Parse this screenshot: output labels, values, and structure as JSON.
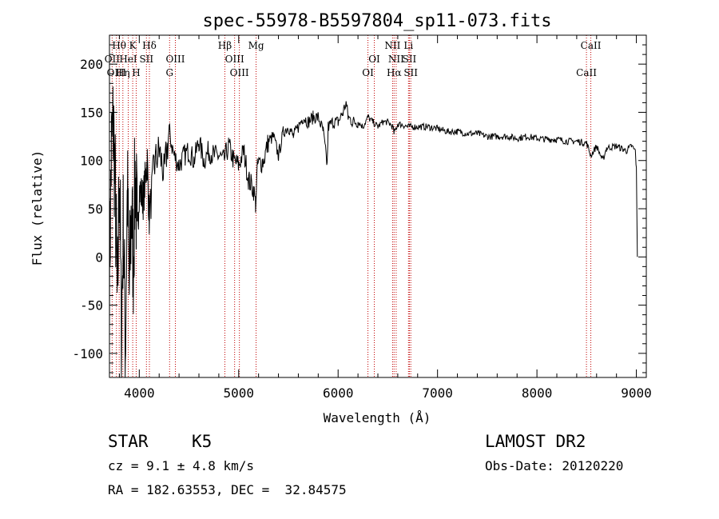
{
  "colors": {
    "foreground": "#000000",
    "background": "#ffffff",
    "line_marker": "#c00000"
  },
  "chart_data": {
    "type": "line",
    "title": "spec-55978-B5597804_sp11-073.fits",
    "xlabel": "Wavelength (Å)",
    "ylabel": "Flux (relative)",
    "xlim": [
      3700,
      9100
    ],
    "ylim": [
      -125,
      230
    ],
    "xticks": [
      4000,
      5000,
      6000,
      7000,
      8000,
      9000
    ],
    "yticks": [
      -100,
      -50,
      0,
      50,
      100,
      150,
      200
    ],
    "series": [
      {
        "name": "flux",
        "x": [
          3700,
          3720,
          3740,
          3760,
          3780,
          3800,
          3820,
          3840,
          3860,
          3880,
          3900,
          3920,
          3940,
          3960,
          3980,
          4000,
          4040,
          4080,
          4100,
          4150,
          4200,
          4250,
          4300,
          4350,
          4400,
          4450,
          4500,
          4550,
          4600,
          4650,
          4700,
          4750,
          4800,
          4850,
          4900,
          4950,
          5000,
          5050,
          5100,
          5150,
          5170,
          5190,
          5250,
          5300,
          5350,
          5400,
          5450,
          5500,
          5550,
          5600,
          5650,
          5700,
          5750,
          5800,
          5850,
          5890,
          5900,
          5950,
          6000,
          6050,
          6080,
          6100,
          6150,
          6200,
          6250,
          6300,
          6350,
          6400,
          6450,
          6500,
          6550,
          6563,
          6600,
          6650,
          6700,
          6800,
          6900,
          7000,
          7100,
          7200,
          7300,
          7400,
          7500,
          7600,
          7700,
          7800,
          7900,
          8000,
          8100,
          8200,
          8300,
          8400,
          8500,
          8542,
          8600,
          8662,
          8700,
          8800,
          8900,
          8950,
          8990,
          9000,
          9010
        ],
        "y": [
          -20,
          110,
          140,
          60,
          -60,
          100,
          -80,
          40,
          -95,
          70,
          -40,
          50,
          0,
          90,
          20,
          70,
          60,
          100,
          40,
          95,
          110,
          85,
          130,
          105,
          95,
          105,
          110,
          100,
          120,
          100,
          110,
          105,
          105,
          100,
          115,
          100,
          95,
          110,
          80,
          70,
          55,
          95,
          100,
          120,
          125,
          105,
          130,
          135,
          125,
          135,
          145,
          140,
          145,
          145,
          130,
          95,
          135,
          140,
          140,
          150,
          160,
          145,
          140,
          140,
          135,
          145,
          140,
          135,
          140,
          140,
          135,
          128,
          138,
          137,
          135,
          135,
          135,
          133,
          130,
          130,
          128,
          128,
          125,
          125,
          125,
          123,
          125,
          123,
          122,
          122,
          120,
          120,
          118,
          105,
          115,
          100,
          113,
          115,
          110,
          115,
          110,
          90,
          0
        ]
      }
    ],
    "line_markers": [
      {
        "label": "Hθ",
        "x": 3798,
        "row": 1
      },
      {
        "label": "OII",
        "x": 3727,
        "row": 2
      },
      {
        "label": "OIII",
        "x": 3770,
        "row": 3
      },
      {
        "label": "K",
        "x": 3934,
        "row": 1
      },
      {
        "label": "HeI",
        "x": 3889,
        "row": 2
      },
      {
        "label": "Hη",
        "x": 3835,
        "row": 3
      },
      {
        "label": "H",
        "x": 3969,
        "row": 3
      },
      {
        "label": "Hδ",
        "x": 4102,
        "row": 1
      },
      {
        "label": "SII",
        "x": 4072,
        "row": 2
      },
      {
        "label": "OIII",
        "x": 4363,
        "row": 2
      },
      {
        "label": "G",
        "x": 4305,
        "row": 3
      },
      {
        "label": "Hβ",
        "x": 4861,
        "row": 1
      },
      {
        "label": "OIII",
        "x": 4959,
        "row": 2
      },
      {
        "label": "OIII",
        "x": 5007,
        "row": 3
      },
      {
        "label": "Mg",
        "x": 5175,
        "row": 1
      },
      {
        "label": "OI",
        "x": 6364,
        "row": 2
      },
      {
        "label": "OI",
        "x": 6300,
        "row": 3
      },
      {
        "label": "NII",
        "x": 6548,
        "row": 1
      },
      {
        "label": "Li",
        "x": 6708,
        "row": 1
      },
      {
        "label": "NII",
        "x": 6584,
        "row": 2
      },
      {
        "label": "SII",
        "x": 6717,
        "row": 2
      },
      {
        "label": "Hα",
        "x": 6563,
        "row": 3
      },
      {
        "label": "SII",
        "x": 6731,
        "row": 3
      },
      {
        "label": "CaII",
        "x": 8542,
        "row": 1
      },
      {
        "label": "CaII",
        "x": 8498,
        "row": 3
      }
    ]
  },
  "info": {
    "class_label": "STAR",
    "subclass": "K5",
    "survey": "LAMOST DR2",
    "cz_line": "cz = 9.1 ± 4.8 km/s",
    "obs_date": "Obs-Date: 20120220",
    "coords": "RA = 182.63553, DEC =  32.84575"
  }
}
